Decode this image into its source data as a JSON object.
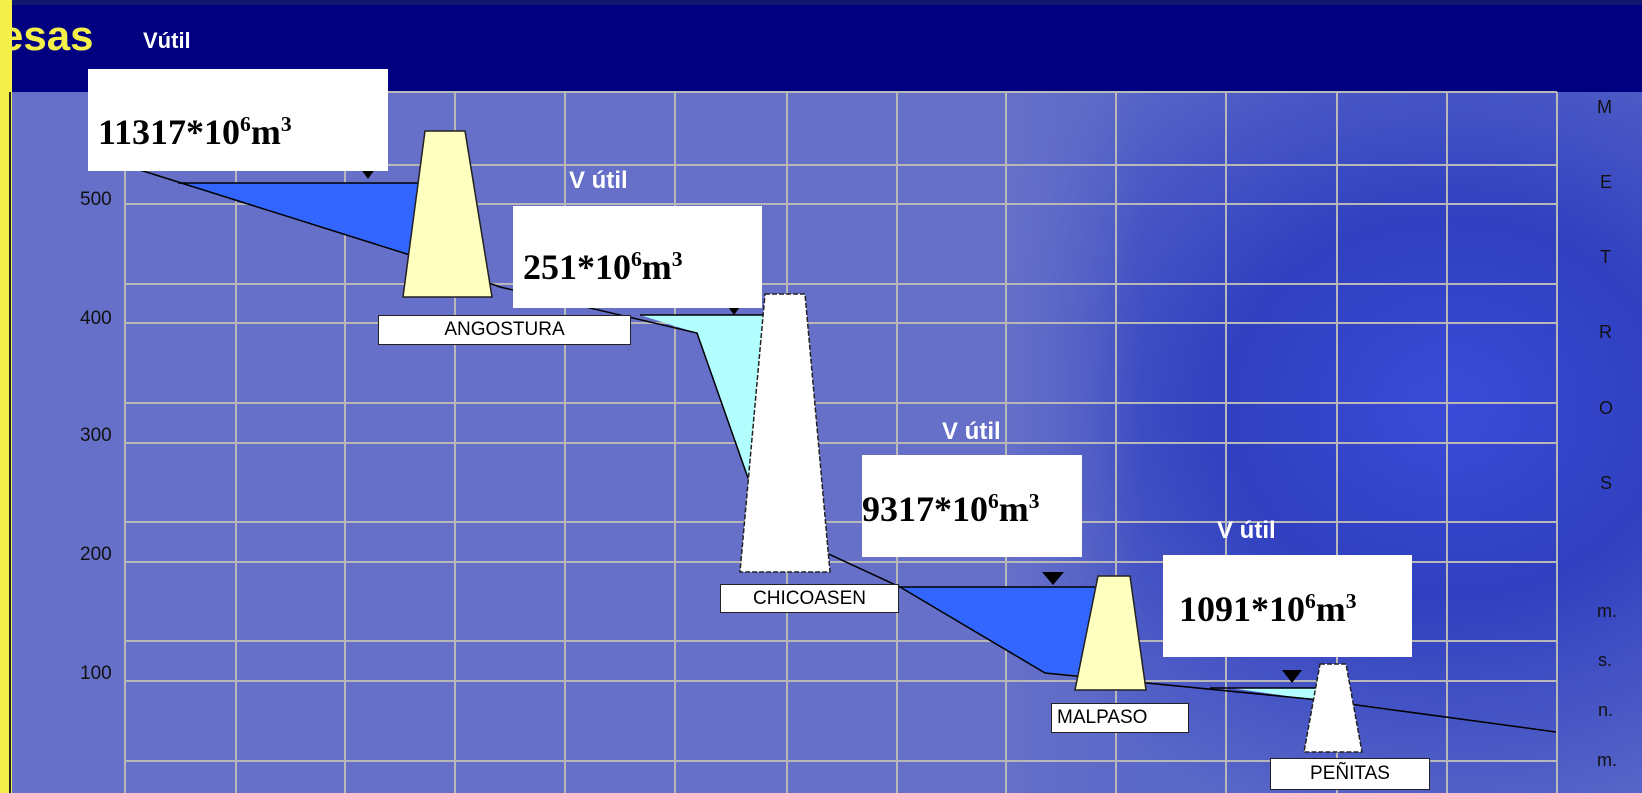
{
  "header": {
    "title_fragment": "esas",
    "label": "Vútil"
  },
  "y_axis": {
    "ticks": [
      "500",
      "400",
      "300",
      "200",
      "100"
    ]
  },
  "right_axis": {
    "letters": [
      "M",
      "E",
      "T",
      "R",
      "O",
      "S"
    ],
    "unit_letters": [
      "m.",
      "s.",
      "n.",
      "m."
    ]
  },
  "volume_label": "V útil",
  "dams": [
    {
      "name": "ANGOSTURA",
      "volume_base": "11317*10",
      "volume_exp": "6",
      "volume_unit": "m",
      "volume_unit_exp": "3"
    },
    {
      "name": "CHICOASEN",
      "volume_base": "251*10",
      "volume_exp": "6",
      "volume_unit": "m",
      "volume_unit_exp": "3"
    },
    {
      "name": "MALPASO",
      "volume_base": "9317*10",
      "volume_exp": "6",
      "volume_unit": "m",
      "volume_unit_exp": "3"
    },
    {
      "name": "PEÑITAS",
      "volume_base": "1091*10",
      "volume_exp": "6",
      "volume_unit": "m",
      "volume_unit_exp": "3"
    }
  ],
  "colors": {
    "background": "#6670c8",
    "header": "#000080",
    "title": "#f5ef4a",
    "reservoir_large": "#3366ff",
    "reservoir_small": "#b3ffff",
    "dam_yellow": "#ffffc0",
    "dam_white": "#ffffff"
  }
}
